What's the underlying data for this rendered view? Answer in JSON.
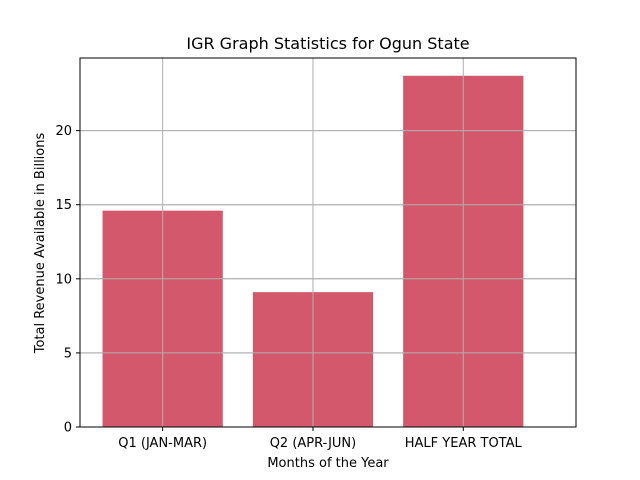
{
  "chart_data": {
    "type": "bar",
    "title": "IGR Graph Statistics for Ogun State",
    "xlabel": "Months of the Year",
    "ylabel": "Total Revenue Available in Billions",
    "categories": [
      "Q1 (JAN-MAR)",
      "Q2 (APR-JUN)",
      "HALF YEAR TOTAL"
    ],
    "values": [
      14.6,
      9.1,
      23.7
    ],
    "ylim": [
      0,
      24.9
    ],
    "yticks": [
      0,
      5,
      10,
      15,
      20
    ],
    "grid": true,
    "bar_color": "#d4586b"
  }
}
